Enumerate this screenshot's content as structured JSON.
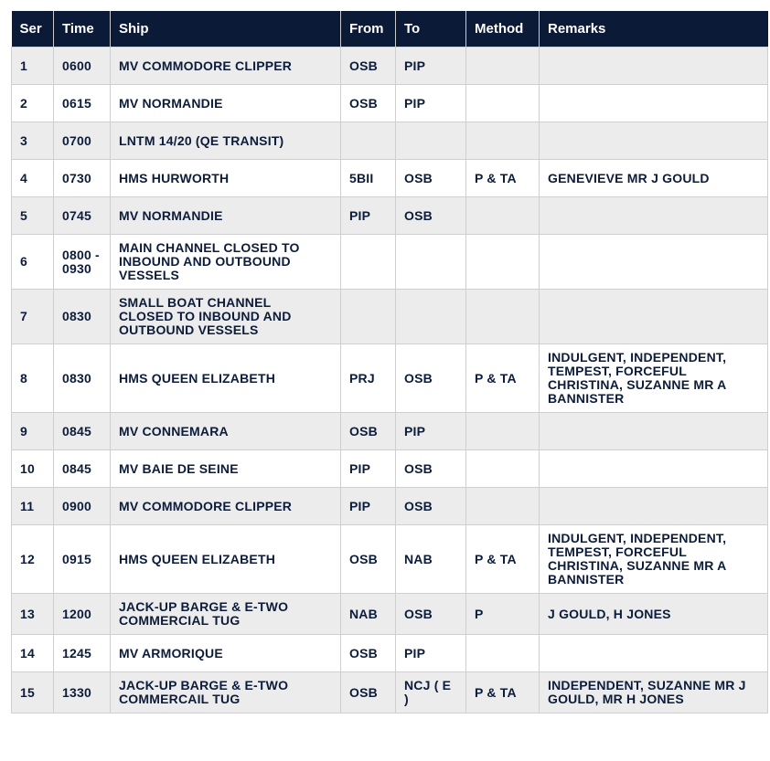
{
  "headers": [
    "Ser",
    "Time",
    "Ship",
    "From",
    "To",
    "Method",
    "Remarks"
  ],
  "rows": [
    {
      "ser": "1",
      "time": "0600",
      "ship": "MV COMMODORE CLIPPER",
      "from": "OSB",
      "to": "PIP",
      "method": "",
      "remarks": ""
    },
    {
      "ser": "2",
      "time": "0615",
      "ship": "MV NORMANDIE",
      "from": "OSB",
      "to": "PIP",
      "method": "",
      "remarks": ""
    },
    {
      "ser": "3",
      "time": "0700",
      "ship": "LNTM 14/20 (QE TRANSIT)",
      "from": "",
      "to": "",
      "method": "",
      "remarks": ""
    },
    {
      "ser": "4",
      "time": "0730",
      "ship": "HMS HURWORTH",
      "from": "5BII",
      "to": "OSB",
      "method": "P & TA",
      "remarks": "GENEVIEVE MR J GOULD"
    },
    {
      "ser": "5",
      "time": "0745",
      "ship": "MV NORMANDIE",
      "from": "PIP",
      "to": "OSB",
      "method": "",
      "remarks": ""
    },
    {
      "ser": "6",
      "time": "0800 - 0930",
      "ship": "MAIN CHANNEL CLOSED TO INBOUND AND OUTBOUND VESSELS",
      "from": "",
      "to": "",
      "method": "",
      "remarks": ""
    },
    {
      "ser": "7",
      "time": "0830",
      "ship": "SMALL BOAT CHANNEL CLOSED TO INBOUND AND OUTBOUND VESSELS",
      "from": "",
      "to": "",
      "method": "",
      "remarks": ""
    },
    {
      "ser": "8",
      "time": "0830",
      "ship": "HMS QUEEN ELIZABETH",
      "from": "PRJ",
      "to": "OSB",
      "method": "P & TA",
      "remarks": "INDULGENT, INDEPENDENT, TEMPEST, FORCEFUL CHRISTINA, SUZANNE MR A BANNISTER"
    },
    {
      "ser": "9",
      "time": "0845",
      "ship": "MV CONNEMARA",
      "from": "OSB",
      "to": "PIP",
      "method": "",
      "remarks": ""
    },
    {
      "ser": "10",
      "time": "0845",
      "ship": "MV BAIE DE SEINE",
      "from": "PIP",
      "to": "OSB",
      "method": "",
      "remarks": ""
    },
    {
      "ser": "11",
      "time": "0900",
      "ship": "MV COMMODORE CLIPPER",
      "from": "PIP",
      "to": "OSB",
      "method": "",
      "remarks": ""
    },
    {
      "ser": "12",
      "time": "0915",
      "ship": "HMS QUEEN ELIZABETH",
      "from": "OSB",
      "to": "NAB",
      "method": "P & TA",
      "remarks": "INDULGENT, INDEPENDENT, TEMPEST, FORCEFUL CHRISTINA, SUZANNE MR A BANNISTER"
    },
    {
      "ser": "13",
      "time": "1200",
      "ship": "JACK-UP BARGE & E-TWO COMMERCIAL TUG",
      "from": "NAB",
      "to": "OSB",
      "method": "P",
      "remarks": "J GOULD, H JONES"
    },
    {
      "ser": "14",
      "time": "1245",
      "ship": "MV ARMORIQUE",
      "from": "OSB",
      "to": "PIP",
      "method": "",
      "remarks": ""
    },
    {
      "ser": "15",
      "time": "1330",
      "ship": "JACK-UP BARGE & E-TWO COMMERCAIL TUG",
      "from": "OSB",
      "to": "NCJ ( E )",
      "method": "P & TA",
      "remarks": "INDEPENDENT, SUZANNE MR J GOULD, MR H JONES"
    }
  ]
}
